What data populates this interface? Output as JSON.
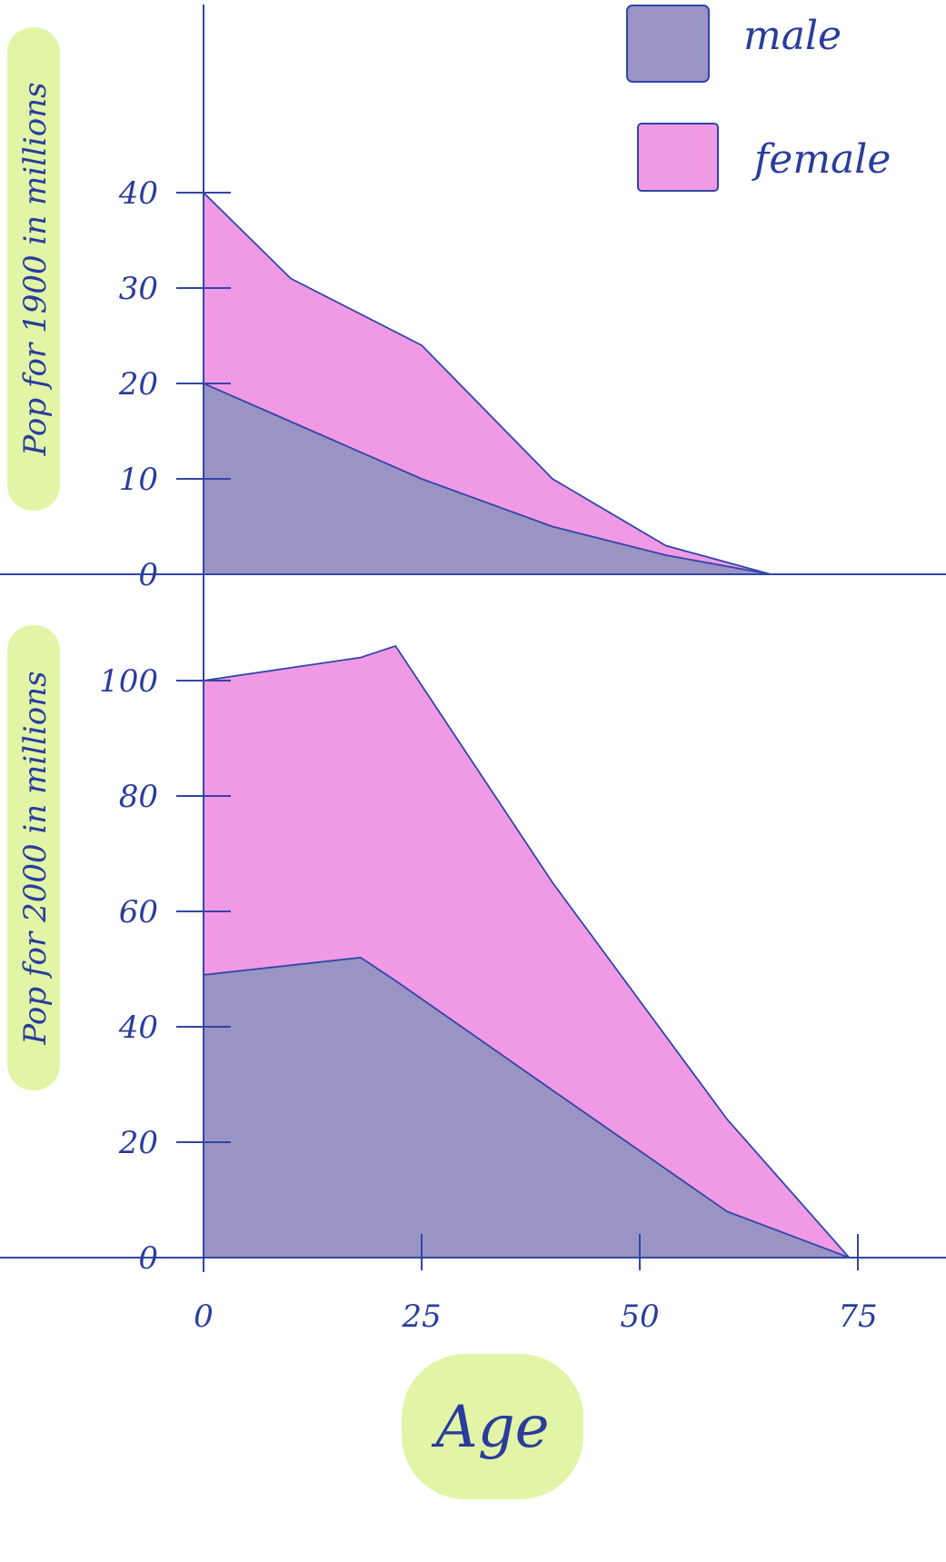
{
  "colors": {
    "male": "#9a94c4",
    "female": "#f09ae6",
    "ink": "#3046a8",
    "highlight": "#e2f5a6"
  },
  "legend": {
    "position": "top-right",
    "items": [
      {
        "label": "male",
        "series": "male"
      },
      {
        "label": "female",
        "series": "female"
      }
    ]
  },
  "chart_data": [
    {
      "type": "area",
      "stacked": true,
      "title": "",
      "ylabel": "Pop for 1900 in millions",
      "xlabel": "",
      "xlim": [
        0,
        75
      ],
      "ylim": [
        0,
        45
      ],
      "yticks": [
        0,
        10,
        20,
        30,
        40
      ],
      "grid": false,
      "series": [
        {
          "name": "male",
          "x": [
            0,
            10,
            25,
            40,
            53,
            65
          ],
          "values": [
            20,
            16,
            10,
            5,
            2,
            0
          ]
        },
        {
          "name": "female",
          "x": [
            0,
            10,
            25,
            40,
            53,
            65
          ],
          "values": [
            20,
            15,
            14,
            5,
            1,
            0
          ]
        }
      ]
    },
    {
      "type": "area",
      "stacked": true,
      "title": "",
      "ylabel": "Pop for 2000 in millions",
      "xlabel": "Age",
      "xlim": [
        0,
        80
      ],
      "ylim": [
        0,
        108
      ],
      "yticks": [
        0,
        20,
        40,
        60,
        80,
        100
      ],
      "xticks": [
        0,
        25,
        50,
        75
      ],
      "grid": false,
      "series": [
        {
          "name": "male",
          "x": [
            0,
            18,
            22,
            40,
            60,
            74
          ],
          "values": [
            49,
            52,
            48,
            29,
            8,
            0
          ]
        },
        {
          "name": "female",
          "x": [
            0,
            18,
            22,
            40,
            60,
            74
          ],
          "values": [
            51,
            52,
            58,
            36,
            16,
            0
          ]
        }
      ]
    }
  ]
}
